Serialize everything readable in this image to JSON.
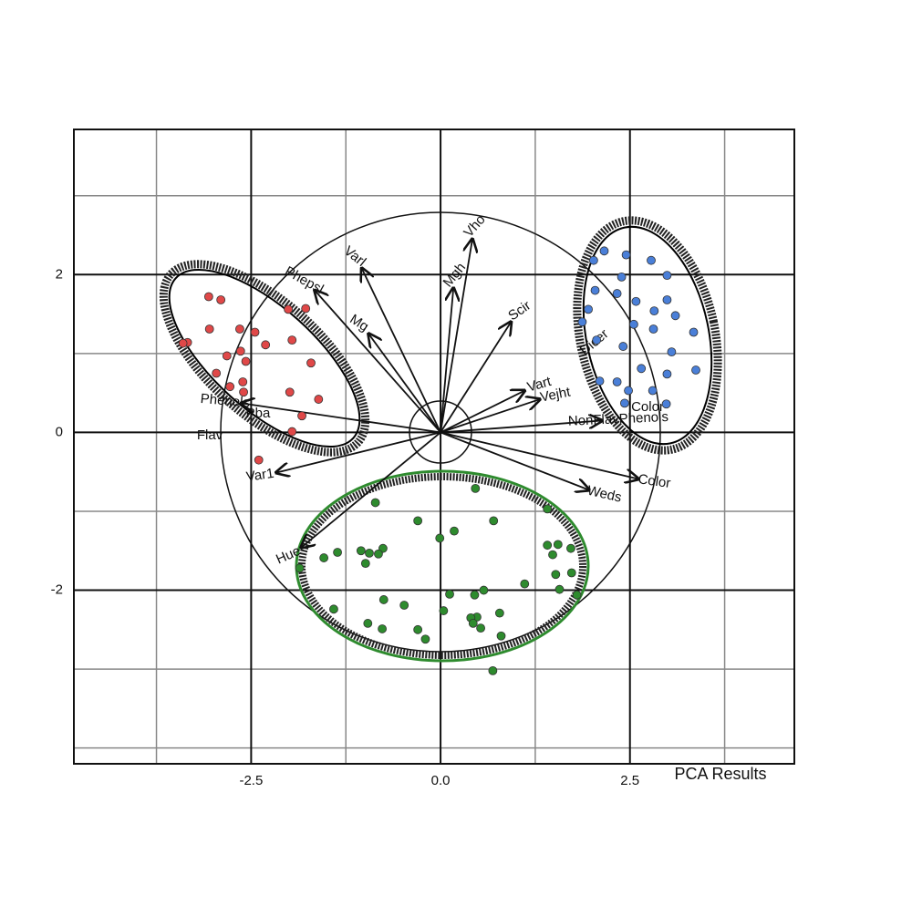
{
  "chart_data": {
    "type": "scatter",
    "title": "PCA Results",
    "xlim": [
      -4.84,
      4.67
    ],
    "ylim": [
      -4.2,
      3.84
    ],
    "xticks": [
      -2.5,
      {
        "value": 0,
        "label": "0.0"
      },
      2.5
    ],
    "yticks": [
      -2,
      0,
      2
    ],
    "xgrid": [
      -3.75,
      -1.25,
      1.25,
      3.75
    ],
    "ygrid": [
      -4,
      -3,
      -1,
      1,
      3
    ],
    "grid": true,
    "series": [
      {
        "color": "#e04848",
        "x": [
          -3.06,
          -2.9,
          -3.05,
          -3.34,
          -3.4,
          -2.65,
          -2.45,
          -2.31,
          -2.64,
          -2.82,
          -2.57,
          -2.01,
          -1.78,
          -1.96,
          -1.71,
          -2.96,
          -2.61,
          -2.78,
          -2.6,
          -1.99,
          -1.61,
          -1.83,
          -1.96,
          -2.4
        ],
        "y": [
          1.72,
          1.68,
          1.31,
          1.14,
          1.13,
          1.31,
          1.27,
          1.11,
          1.03,
          0.97,
          0.9,
          1.56,
          1.57,
          1.17,
          0.88,
          0.75,
          0.64,
          0.58,
          0.51,
          0.51,
          0.42,
          0.21,
          0.01,
          -0.35
        ]
      },
      {
        "color": "#4a7fd8",
        "x": [
          2.02,
          2.16,
          2.45,
          2.78,
          2.39,
          2.99,
          2.04,
          2.33,
          1.95,
          2.58,
          2.82,
          2.99,
          1.87,
          2.55,
          3.1,
          2.81,
          3.34,
          2.06,
          2.41,
          3.05,
          3.37,
          2.65,
          2.99,
          2.1,
          2.33,
          2.48,
          2.8,
          2.98,
          2.43
        ],
        "y": [
          2.18,
          2.3,
          2.25,
          2.18,
          1.97,
          1.99,
          1.8,
          1.76,
          1.56,
          1.66,
          1.54,
          1.68,
          1.4,
          1.37,
          1.48,
          1.31,
          1.27,
          1.17,
          1.09,
          1.02,
          0.79,
          0.81,
          0.74,
          0.65,
          0.64,
          0.53,
          0.53,
          0.36,
          0.37
        ]
      },
      {
        "color": "#2e8b2e",
        "x": [
          0.46,
          -0.86,
          -0.3,
          0.18,
          0.7,
          -0.01,
          1.41,
          -1.36,
          -1.54,
          -1.05,
          -0.94,
          -0.76,
          -0.82,
          -0.99,
          1.41,
          1.55,
          1.72,
          1.48,
          1.52,
          1.73,
          1.11,
          1.8,
          1.57,
          0.12,
          0.57,
          0.45,
          -0.75,
          -0.48,
          -1.41,
          0.04,
          0.48,
          0.78,
          0.4,
          0.43,
          0.53,
          -0.96,
          -0.77,
          -0.3,
          -0.2,
          0.8,
          0.69,
          -1.86
        ],
        "y": [
          -0.71,
          -0.89,
          -1.12,
          -1.25,
          -1.12,
          -1.34,
          -0.97,
          -1.52,
          -1.59,
          -1.5,
          -1.53,
          -1.47,
          -1.54,
          -1.66,
          -1.43,
          -1.42,
          -1.47,
          -1.55,
          -1.8,
          -1.78,
          -1.92,
          -2.06,
          -1.99,
          -2.05,
          -2.0,
          -2.06,
          -2.12,
          -2.19,
          -2.24,
          -2.26,
          -2.34,
          -2.29,
          -2.35,
          -2.42,
          -2.48,
          -2.42,
          -2.49,
          -2.5,
          -2.62,
          -2.58,
          -3.02,
          -1.72
        ]
      }
    ],
    "loadings": [
      {
        "name": "Phepsl",
        "x": -1.66,
        "y": 1.8
      },
      {
        "name": "Varl",
        "x": -1.04,
        "y": 2.08
      },
      {
        "name": "Mg",
        "x": -0.95,
        "y": 1.25
      },
      {
        "name": "Mgh",
        "x": 0.17,
        "y": 1.83
      },
      {
        "name": "Vho",
        "x": 0.42,
        "y": 2.45
      },
      {
        "name": "Scir",
        "x": 0.93,
        "y": 1.4
      },
      {
        "name": "Vart",
        "x": 1.11,
        "y": 0.53
      },
      {
        "name": "Vejht",
        "x": 1.31,
        "y": 0.42
      },
      {
        "name": "NonFlavPhenols",
        "x": 2.13,
        "y": 0.15
      },
      {
        "name": "Color",
        "x": 2.61,
        "y": -0.59
      },
      {
        "name": "Weds",
        "x": 1.96,
        "y": -0.73
      },
      {
        "name": "Hue",
        "x": -1.84,
        "y": -1.46
      },
      {
        "name": "Var1",
        "x": -2.17,
        "y": -0.51
      },
      {
        "name": "Phenols",
        "x": -2.63,
        "y": 0.37
      }
    ],
    "annotations": [
      "Flav",
      "Pba",
      "Color",
      "Dicer"
    ]
  }
}
